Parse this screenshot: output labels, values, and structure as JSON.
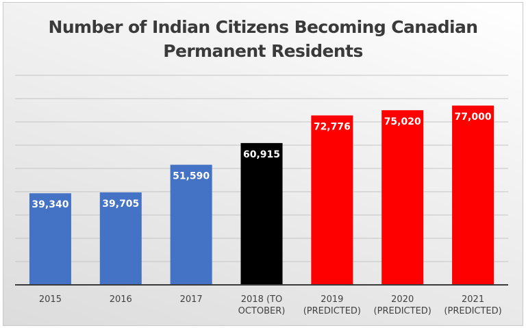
{
  "chart_data": {
    "type": "bar",
    "title": "Number of Indian Citizens Becoming Canadian Permanent Residents",
    "title_lines": [
      "Number of Indian Citizens Becoming Canadian",
      "Permanent Residents"
    ],
    "categories": [
      [
        "2015"
      ],
      [
        "2016"
      ],
      [
        "2017"
      ],
      [
        "2018 (TO",
        "OCTOBER)"
      ],
      [
        "2019",
        "(PREDICTED)"
      ],
      [
        "2020",
        "(PREDICTED)"
      ],
      [
        "2021",
        "(PREDICTED)"
      ]
    ],
    "values": [
      39340,
      39705,
      51590,
      60915,
      72776,
      75020,
      77000
    ],
    "data_labels": [
      "39,340",
      "39,705",
      "51,590",
      "60,915",
      "72,776",
      "75,020",
      "77,000"
    ],
    "bar_colors": [
      "#4472c4",
      "#4472c4",
      "#4472c4",
      "#000000",
      "#ff0000",
      "#ff0000",
      "#ff0000"
    ],
    "ylim": [
      0,
      90000
    ],
    "y_gridline_step": 10000,
    "y_tick_labels_shown": false,
    "grid": true,
    "legend": "none",
    "xlabel": "",
    "ylabel": ""
  }
}
